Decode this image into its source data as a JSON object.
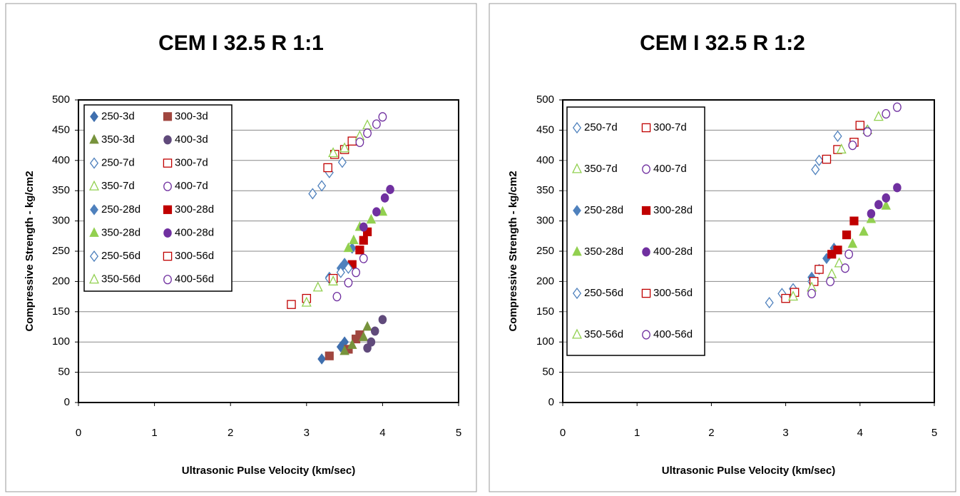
{
  "chart_data": [
    {
      "type": "scatter",
      "title": "CEM I 32.5 R 1:1",
      "x_label": "Ultrasonic Pulse Velocity (km/sec)",
      "y_label": "Compressive Strength - kg/cm2",
      "xlim": [
        0,
        5
      ],
      "xticks": [
        0,
        1,
        2,
        3,
        4,
        5
      ],
      "ylim": [
        0,
        500
      ],
      "yticks": [
        0,
        50,
        100,
        150,
        200,
        250,
        300,
        350,
        400,
        450,
        500
      ],
      "grid": true,
      "series": [
        {
          "name": "250-3d",
          "color": "#3f6fae",
          "marker": "diamond",
          "filled": true,
          "x": [
            3.2,
            3.45,
            3.5
          ],
          "values": [
            72,
            92,
            100
          ]
        },
        {
          "name": "300-3d",
          "color": "#a0463f",
          "marker": "square",
          "filled": true,
          "x": [
            3.3,
            3.55,
            3.65,
            3.7
          ],
          "values": [
            77,
            88,
            105,
            112
          ]
        },
        {
          "name": "350-3d",
          "color": "#77933c",
          "marker": "triangle",
          "filled": true,
          "x": [
            3.5,
            3.6,
            3.75,
            3.8
          ],
          "values": [
            85,
            95,
            108,
            125
          ]
        },
        {
          "name": "400-3d",
          "color": "#604a7b",
          "marker": "circle",
          "filled": true,
          "x": [
            3.8,
            3.85,
            3.9,
            4.0
          ],
          "values": [
            90,
            100,
            118,
            137
          ]
        },
        {
          "name": "250-7d",
          "color": "#4f81bd",
          "marker": "diamond",
          "filled": false,
          "x": [
            3.08,
            3.2,
            3.3,
            3.47
          ],
          "values": [
            345,
            358,
            380,
            397
          ]
        },
        {
          "name": "300-7d",
          "color": "#c00000",
          "marker": "square",
          "filled": false,
          "x": [
            3.28,
            3.37,
            3.5,
            3.6
          ],
          "values": [
            388,
            410,
            418,
            432
          ]
        },
        {
          "name": "350-7d",
          "color": "#92d050",
          "marker": "triangle",
          "filled": false,
          "x": [
            3.35,
            3.5,
            3.7,
            3.8
          ],
          "values": [
            412,
            420,
            440,
            458
          ]
        },
        {
          "name": "400-7d",
          "color": "#7030a0",
          "marker": "circle",
          "filled": false,
          "x": [
            3.7,
            3.8,
            3.92,
            4.0
          ],
          "values": [
            430,
            445,
            460,
            472
          ]
        },
        {
          "name": "250-28d",
          "color": "#4f81bd",
          "marker": "diamond",
          "filled": true,
          "x": [
            3.3,
            3.45,
            3.5,
            3.6
          ],
          "values": [
            207,
            222,
            230,
            255
          ]
        },
        {
          "name": "300-28d",
          "color": "#c00000",
          "marker": "square",
          "filled": true,
          "x": [
            3.6,
            3.7,
            3.75,
            3.8
          ],
          "values": [
            228,
            252,
            268,
            282
          ]
        },
        {
          "name": "350-28d",
          "color": "#92d050",
          "marker": "triangle",
          "filled": true,
          "x": [
            3.55,
            3.62,
            3.7,
            3.85,
            4.0
          ],
          "values": [
            255,
            268,
            290,
            302,
            315
          ]
        },
        {
          "name": "400-28d",
          "color": "#7030a0",
          "marker": "circle",
          "filled": true,
          "x": [
            3.75,
            3.92,
            4.03,
            4.1
          ],
          "values": [
            290,
            315,
            338,
            352
          ]
        },
        {
          "name": "250-56d",
          "color": "#4f81bd",
          "marker": "diamond",
          "filled": false,
          "x": [
            3.3,
            3.45,
            3.55
          ],
          "values": [
            205,
            215,
            222
          ]
        },
        {
          "name": "300-56d",
          "color": "#c00000",
          "marker": "square",
          "filled": false,
          "x": [
            2.8,
            3.0,
            3.35
          ],
          "values": [
            162,
            172,
            205
          ]
        },
        {
          "name": "350-56d",
          "color": "#92d050",
          "marker": "triangle",
          "filled": false,
          "x": [
            3.0,
            3.15,
            3.35
          ],
          "values": [
            165,
            190,
            200
          ]
        },
        {
          "name": "400-56d",
          "color": "#7030a0",
          "marker": "circle",
          "filled": false,
          "x": [
            3.4,
            3.55,
            3.65,
            3.75
          ],
          "values": [
            175,
            198,
            215,
            238
          ]
        }
      ]
    },
    {
      "type": "scatter",
      "title": "CEM I 32.5 R 1:2",
      "x_label": "Ultrasonic Pulse Velocity (km/sec)",
      "y_label": "Compressive Strength - kg/cm2",
      "xlim": [
        0,
        5
      ],
      "xticks": [
        0,
        1,
        2,
        3,
        4,
        5
      ],
      "ylim": [
        0,
        500
      ],
      "yticks": [
        0,
        50,
        100,
        150,
        200,
        250,
        300,
        350,
        400,
        450,
        500
      ],
      "grid": true,
      "series": [
        {
          "name": "250-7d",
          "color": "#4f81bd",
          "marker": "diamond",
          "filled": false,
          "x": [
            3.4,
            3.45,
            3.7,
            4.1
          ],
          "values": [
            385,
            400,
            440,
            450
          ]
        },
        {
          "name": "300-7d",
          "color": "#c00000",
          "marker": "square",
          "filled": false,
          "x": [
            3.55,
            3.7,
            3.92,
            4.0
          ],
          "values": [
            402,
            418,
            430,
            458
          ]
        },
        {
          "name": "350-7d",
          "color": "#92d050",
          "marker": "triangle",
          "filled": false,
          "x": [
            3.75,
            4.1,
            4.25
          ],
          "values": [
            418,
            450,
            472
          ]
        },
        {
          "name": "400-7d",
          "color": "#7030a0",
          "marker": "circle",
          "filled": false,
          "x": [
            3.9,
            4.1,
            4.35,
            4.5
          ],
          "values": [
            425,
            447,
            477,
            488
          ]
        },
        {
          "name": "250-28d",
          "color": "#4f81bd",
          "marker": "diamond",
          "filled": true,
          "x": [
            3.35,
            3.45,
            3.55,
            3.65
          ],
          "values": [
            207,
            220,
            238,
            255
          ]
        },
        {
          "name": "300-28d",
          "color": "#c00000",
          "marker": "square",
          "filled": true,
          "x": [
            3.62,
            3.7,
            3.82,
            3.92
          ],
          "values": [
            245,
            252,
            277,
            300
          ]
        },
        {
          "name": "350-28d",
          "color": "#92d050",
          "marker": "triangle",
          "filled": true,
          "x": [
            3.9,
            4.05,
            4.15,
            4.35
          ],
          "values": [
            262,
            282,
            303,
            325
          ]
        },
        {
          "name": "400-28d",
          "color": "#7030a0",
          "marker": "circle",
          "filled": true,
          "x": [
            4.15,
            4.25,
            4.35,
            4.5
          ],
          "values": [
            312,
            327,
            338,
            355
          ]
        },
        {
          "name": "250-56d",
          "color": "#4f81bd",
          "marker": "diamond",
          "filled": false,
          "x": [
            2.78,
            2.95,
            3.1,
            3.35
          ],
          "values": [
            165,
            180,
            188,
            200
          ]
        },
        {
          "name": "300-56d",
          "color": "#c00000",
          "marker": "square",
          "filled": false,
          "x": [
            3.0,
            3.12,
            3.38,
            3.45
          ],
          "values": [
            172,
            182,
            200,
            220
          ]
        },
        {
          "name": "350-56d",
          "color": "#92d050",
          "marker": "triangle",
          "filled": false,
          "x": [
            3.1,
            3.35,
            3.62,
            3.72
          ],
          "values": [
            175,
            190,
            212,
            230
          ]
        },
        {
          "name": "400-56d",
          "color": "#7030a0",
          "marker": "circle",
          "filled": false,
          "x": [
            3.35,
            3.6,
            3.8,
            3.85
          ],
          "values": [
            180,
            200,
            222,
            245
          ]
        }
      ]
    }
  ]
}
